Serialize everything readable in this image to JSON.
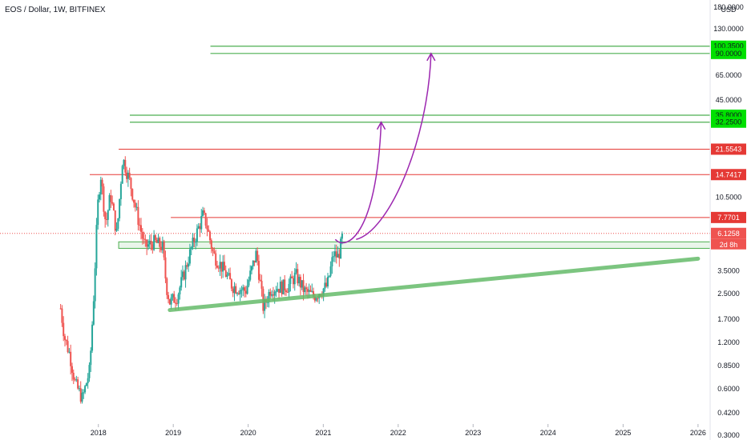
{
  "header": {
    "title": "EOS / Dollar, 1W, BITFINEX"
  },
  "axis": {
    "currency": "USD",
    "y_ticks": [
      "180.0000",
      "130.0000",
      "90.0000",
      "65.0000",
      "45.0000",
      "32.2500",
      "21.5543",
      "14.7417",
      "10.5000",
      "7.7701",
      "6.1258",
      "3.5000",
      "2.5000",
      "1.7000",
      "1.2000",
      "0.8500",
      "0.6000",
      "0.4200",
      "0.3000"
    ],
    "y_plain_ticks": [
      "130.0000",
      "65.0000",
      "45.0000",
      "10.5000",
      "3.5000",
      "2.5000",
      "1.7000",
      "1.2000",
      "0.8500",
      "0.6000",
      "0.4200",
      "0.3000"
    ],
    "x_ticks": [
      "2018",
      "2019",
      "2020",
      "2021",
      "2022",
      "2023",
      "2024",
      "2025",
      "2026"
    ]
  },
  "colors": {
    "up": "#26a69a",
    "down": "#ef5350",
    "resistance": "#e53935",
    "target": "#4caf50",
    "target_tag": "#00e000",
    "trend": "#66bb6a",
    "arrow": "#9c27b0",
    "price_line": "#ef5350",
    "support_zone": "#4caf50"
  },
  "tags": [
    {
      "id": "target-100",
      "label": "100.3500",
      "price": 100.35,
      "kind": "target"
    },
    {
      "id": "target-90",
      "label": "90.0000",
      "price": 90.0,
      "kind": "target"
    },
    {
      "id": "target-35",
      "label": "35.8000",
      "price": 35.8,
      "kind": "target"
    },
    {
      "id": "target-32",
      "label": "32.2500",
      "price": 32.25,
      "kind": "target"
    },
    {
      "id": "resistance-21",
      "label": "21.5543",
      "price": 21.5543,
      "kind": "resistance"
    },
    {
      "id": "resistance-14",
      "label": "14.7417",
      "price": 14.7417,
      "kind": "resistance"
    },
    {
      "id": "resistance-7",
      "label": "7.7701",
      "price": 7.7701,
      "kind": "resistance"
    },
    {
      "id": "last-price",
      "label": "6.1258",
      "price": 6.1258,
      "kind": "price"
    }
  ],
  "countdown": "2d 8h",
  "chart_data": {
    "type": "candlestick",
    "title": "EOS / Dollar, 1W, BITFINEX",
    "y_scale": "log",
    "y_unit": "USD",
    "ylim": [
      0.28,
      200
    ],
    "xlim": [
      "2017-05-01",
      "2026-03-01"
    ],
    "last_price": 6.1258,
    "price_path": [
      [
        "2017-07-01",
        2.0
      ],
      [
        "2017-07-20",
        1.3
      ],
      [
        "2017-08-15",
        1.0
      ],
      [
        "2017-09-10",
        0.65
      ],
      [
        "2017-10-15",
        0.52
      ],
      [
        "2017-11-20",
        0.8
      ],
      [
        "2017-12-10",
        2.5
      ],
      [
        "2017-12-28",
        9.0
      ],
      [
        "2018-01-12",
        15.0
      ],
      [
        "2018-02-06",
        7.0
      ],
      [
        "2018-03-01",
        11.0
      ],
      [
        "2018-04-01",
        6.0
      ],
      [
        "2018-04-29",
        19.0
      ],
      [
        "2018-06-05",
        13.0
      ],
      [
        "2018-07-10",
        8.0
      ],
      [
        "2018-08-15",
        5.0
      ],
      [
        "2018-10-01",
        5.4
      ],
      [
        "2018-11-10",
        5.0
      ],
      [
        "2018-11-28",
        2.8
      ],
      [
        "2018-12-15",
        2.2
      ],
      [
        "2019-01-20",
        2.4
      ],
      [
        "2019-03-01",
        3.6
      ],
      [
        "2019-04-01",
        5.0
      ],
      [
        "2019-05-25",
        8.0
      ],
      [
        "2019-06-10",
        7.2
      ],
      [
        "2019-07-15",
        4.5
      ],
      [
        "2019-09-01",
        3.6
      ],
      [
        "2019-10-15",
        2.8
      ],
      [
        "2019-12-20",
        2.6
      ],
      [
        "2020-02-10",
        4.6
      ],
      [
        "2020-03-15",
        2.0
      ],
      [
        "2020-04-20",
        2.7
      ],
      [
        "2020-07-15",
        2.8
      ],
      [
        "2020-08-20",
        3.3
      ],
      [
        "2020-09-30",
        2.6
      ],
      [
        "2020-11-15",
        2.4
      ],
      [
        "2020-12-20",
        2.6
      ],
      [
        "2021-01-20",
        2.8
      ],
      [
        "2021-02-20",
        4.5
      ],
      [
        "2021-03-15",
        4.3
      ],
      [
        "2021-04-01",
        5.5
      ],
      [
        "2021-04-06",
        6.1258
      ]
    ],
    "horizontal_levels": {
      "targets": [
        100.35,
        90.0,
        35.8,
        32.25
      ],
      "resistance": [
        21.5543,
        14.7417,
        7.7701
      ],
      "support_zone": [
        4.9,
        5.4
      ]
    },
    "trendline": {
      "from": [
        "2018-12-15",
        1.95
      ],
      "to": [
        "2026-01-01",
        4.2
      ]
    },
    "projections": [
      {
        "from": [
          "2021-05-10",
          5.6
        ],
        "to": [
          "2021-10-10",
          32.25
        ]
      },
      {
        "from": [
          "2021-06-10",
          5.6
        ],
        "to": [
          "2022-06-10",
          90.0
        ]
      }
    ]
  }
}
